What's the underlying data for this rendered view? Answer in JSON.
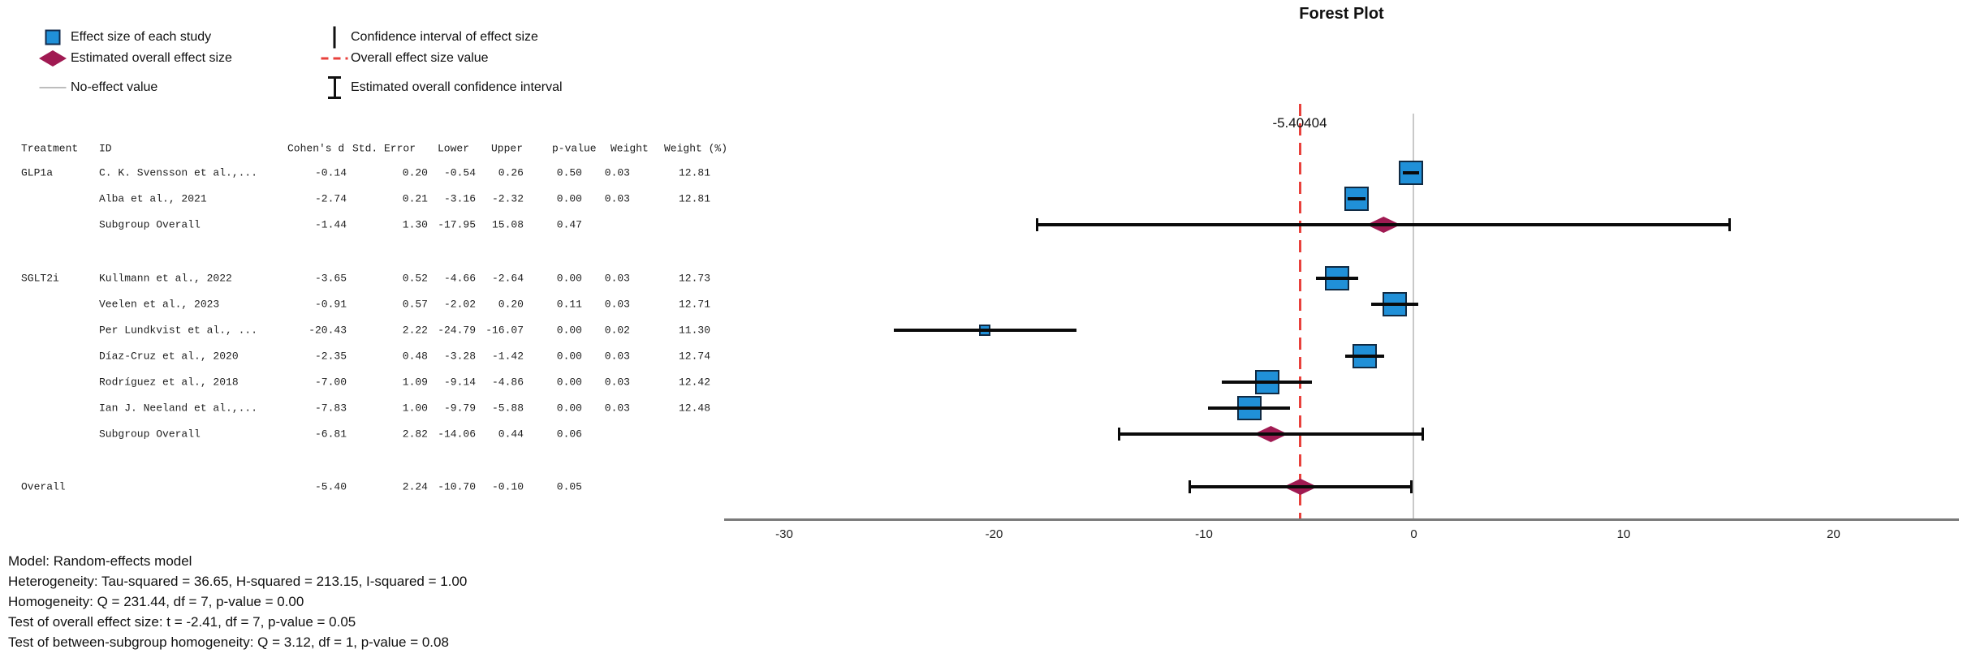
{
  "title": "Forest Plot",
  "overall_effect_label": "-5.40404",
  "legend": {
    "columns": [
      {
        "items": [
          {
            "icon": "study-square-icon",
            "label": "Effect size of each study"
          },
          {
            "icon": "overall-diamond-icon",
            "label": "Estimated overall effect size"
          },
          {
            "icon": "no-effect-line-icon",
            "label": "No-effect value"
          }
        ]
      },
      {
        "items": [
          {
            "icon": "ci-line-icon",
            "label": "Confidence interval of effect size"
          },
          {
            "icon": "overall-dashed-icon",
            "label": "Overall effect size value"
          },
          {
            "icon": "overall-ci-icon",
            "label": "Estimated overall confidence interval"
          }
        ]
      }
    ]
  },
  "table": {
    "headers": [
      "Treatment",
      "ID",
      "Cohen's d",
      "Std. Error",
      "Lower",
      "Upper",
      "p-value",
      "Weight",
      "Weight (%)"
    ],
    "rows": [
      {
        "treatment": "GLP1a",
        "id": "C. K. Svensson et al.,...",
        "cohens_d": "-0.14",
        "std_error": "0.20",
        "lower": "-0.54",
        "upper": "0.26",
        "p_value": "0.50",
        "weight": "0.03",
        "weight_pct": "12.81"
      },
      {
        "treatment": "",
        "id": "Alba et al., 2021",
        "cohens_d": "-2.74",
        "std_error": "0.21",
        "lower": "-3.16",
        "upper": "-2.32",
        "p_value": "0.00",
        "weight": "0.03",
        "weight_pct": "12.81"
      },
      {
        "treatment": "",
        "id": "Subgroup Overall",
        "cohens_d": "-1.44",
        "std_error": "1.30",
        "lower": "-17.95",
        "upper": "15.08",
        "p_value": "0.47",
        "weight": "",
        "weight_pct": ""
      },
      {
        "treatment": "SGLT2i",
        "id": "Kullmann et al., 2022",
        "cohens_d": "-3.65",
        "std_error": "0.52",
        "lower": "-4.66",
        "upper": "-2.64",
        "p_value": "0.00",
        "weight": "0.03",
        "weight_pct": "12.73"
      },
      {
        "treatment": "",
        "id": "Veelen et al., 2023",
        "cohens_d": "-0.91",
        "std_error": "0.57",
        "lower": "-2.02",
        "upper": "0.20",
        "p_value": "0.11",
        "weight": "0.03",
        "weight_pct": "12.71"
      },
      {
        "treatment": "",
        "id": "Per Lundkvist et al., ...",
        "cohens_d": "-20.43",
        "std_error": "2.22",
        "lower": "-24.79",
        "upper": "-16.07",
        "p_value": "0.00",
        "weight": "0.02",
        "weight_pct": "11.30"
      },
      {
        "treatment": "",
        "id": "Díaz-Cruz et al., 2020",
        "cohens_d": "-2.35",
        "std_error": "0.48",
        "lower": "-3.28",
        "upper": "-1.42",
        "p_value": "0.00",
        "weight": "0.03",
        "weight_pct": "12.74"
      },
      {
        "treatment": "",
        "id": "Rodríguez et al., 2018",
        "cohens_d": "-7.00",
        "std_error": "1.09",
        "lower": "-9.14",
        "upper": "-4.86",
        "p_value": "0.00",
        "weight": "0.03",
        "weight_pct": "12.42"
      },
      {
        "treatment": "",
        "id": "Ian J. Neeland et al.,...",
        "cohens_d": "-7.83",
        "std_error": "1.00",
        "lower": "-9.79",
        "upper": "-5.88",
        "p_value": "0.00",
        "weight": "0.03",
        "weight_pct": "12.48"
      },
      {
        "treatment": "",
        "id": "Subgroup Overall",
        "cohens_d": "-6.81",
        "std_error": "2.82",
        "lower": "-14.06",
        "upper": "0.44",
        "p_value": "0.06",
        "weight": "",
        "weight_pct": ""
      },
      {
        "treatment": "Overall",
        "id": "",
        "cohens_d": "-5.40",
        "std_error": "2.24",
        "lower": "-10.70",
        "upper": "-0.10",
        "p_value": "0.05",
        "weight": "",
        "weight_pct": ""
      }
    ]
  },
  "chart_data": {
    "type": "scatter",
    "variant": "forest-plot",
    "title": "Forest Plot",
    "xlabel": "",
    "ylabel": "",
    "xlim": [
      -33,
      26
    ],
    "x_ticks": [
      -30,
      -20,
      -10,
      0,
      10,
      20
    ],
    "x_tick_labels": [
      "-30",
      "-20",
      "-10",
      "0",
      "10",
      "20"
    ],
    "no_effect_value": 0,
    "overall_effect_value": -5.40404,
    "legend_position": "top-left",
    "grid": false,
    "rows": [
      {
        "group": "GLP1a",
        "id": "C. K. Svensson et al.,...",
        "marker": "study",
        "value": -0.14,
        "lower": -0.54,
        "upper": 0.26,
        "weight_pct": 12.81
      },
      {
        "group": "GLP1a",
        "id": "Alba et al., 2021",
        "marker": "study",
        "value": -2.74,
        "lower": -3.16,
        "upper": -2.32,
        "weight_pct": 12.81
      },
      {
        "group": "GLP1a",
        "id": "Subgroup Overall",
        "marker": "summary",
        "value": -1.44,
        "lower": -17.95,
        "upper": 15.08,
        "weight_pct": null
      },
      {
        "group": "SGLT2i",
        "id": "Kullmann et al., 2022",
        "marker": "study",
        "value": -3.65,
        "lower": -4.66,
        "upper": -2.64,
        "weight_pct": 12.73
      },
      {
        "group": "SGLT2i",
        "id": "Veelen et al., 2023",
        "marker": "study",
        "value": -0.91,
        "lower": -2.02,
        "upper": 0.2,
        "weight_pct": 12.71
      },
      {
        "group": "SGLT2i",
        "id": "Per Lundkvist et al., ...",
        "marker": "study",
        "value": -20.43,
        "lower": -24.79,
        "upper": -16.07,
        "weight_pct": 11.3
      },
      {
        "group": "SGLT2i",
        "id": "Díaz-Cruz et al., 2020",
        "marker": "study",
        "value": -2.35,
        "lower": -3.28,
        "upper": -1.42,
        "weight_pct": 12.74
      },
      {
        "group": "SGLT2i",
        "id": "Rodríguez et al., 2018",
        "marker": "study",
        "value": -7.0,
        "lower": -9.14,
        "upper": -4.86,
        "weight_pct": 12.42
      },
      {
        "group": "SGLT2i",
        "id": "Ian J. Neeland et al.,...",
        "marker": "study",
        "value": -7.83,
        "lower": -9.79,
        "upper": -5.88,
        "weight_pct": 12.48
      },
      {
        "group": "SGLT2i",
        "id": "Subgroup Overall",
        "marker": "summary",
        "value": -6.81,
        "lower": -14.06,
        "upper": 0.44,
        "weight_pct": null
      },
      {
        "group": "Overall",
        "id": "Overall",
        "marker": "summary",
        "value": -5.4,
        "lower": -10.7,
        "upper": -0.1,
        "weight_pct": null
      }
    ]
  },
  "footer": {
    "lines": [
      "Model: Random-effects model",
      "Heterogeneity: Tau-squared = 36.65, H-squared = 213.15, I-squared = 1.00",
      "Homogeneity: Q = 231.44, df = 7, p-value = 0.00",
      "Test of overall effect size: t = -2.41, df = 7, p-value = 0.05",
      "Test of between-subgroup homogeneity: Q = 3.12, df = 1, p-value = 0.08"
    ]
  },
  "colors": {
    "study_square_fill": "#2090d8",
    "study_square_border": "#102a43",
    "summary_diamond": "#a01a52",
    "ci_line": "#0a0a0a",
    "overall_dashed_line": "#e8413c",
    "no_effect_line": "#c9c9c9",
    "axis_line": "#7a7a7a"
  }
}
